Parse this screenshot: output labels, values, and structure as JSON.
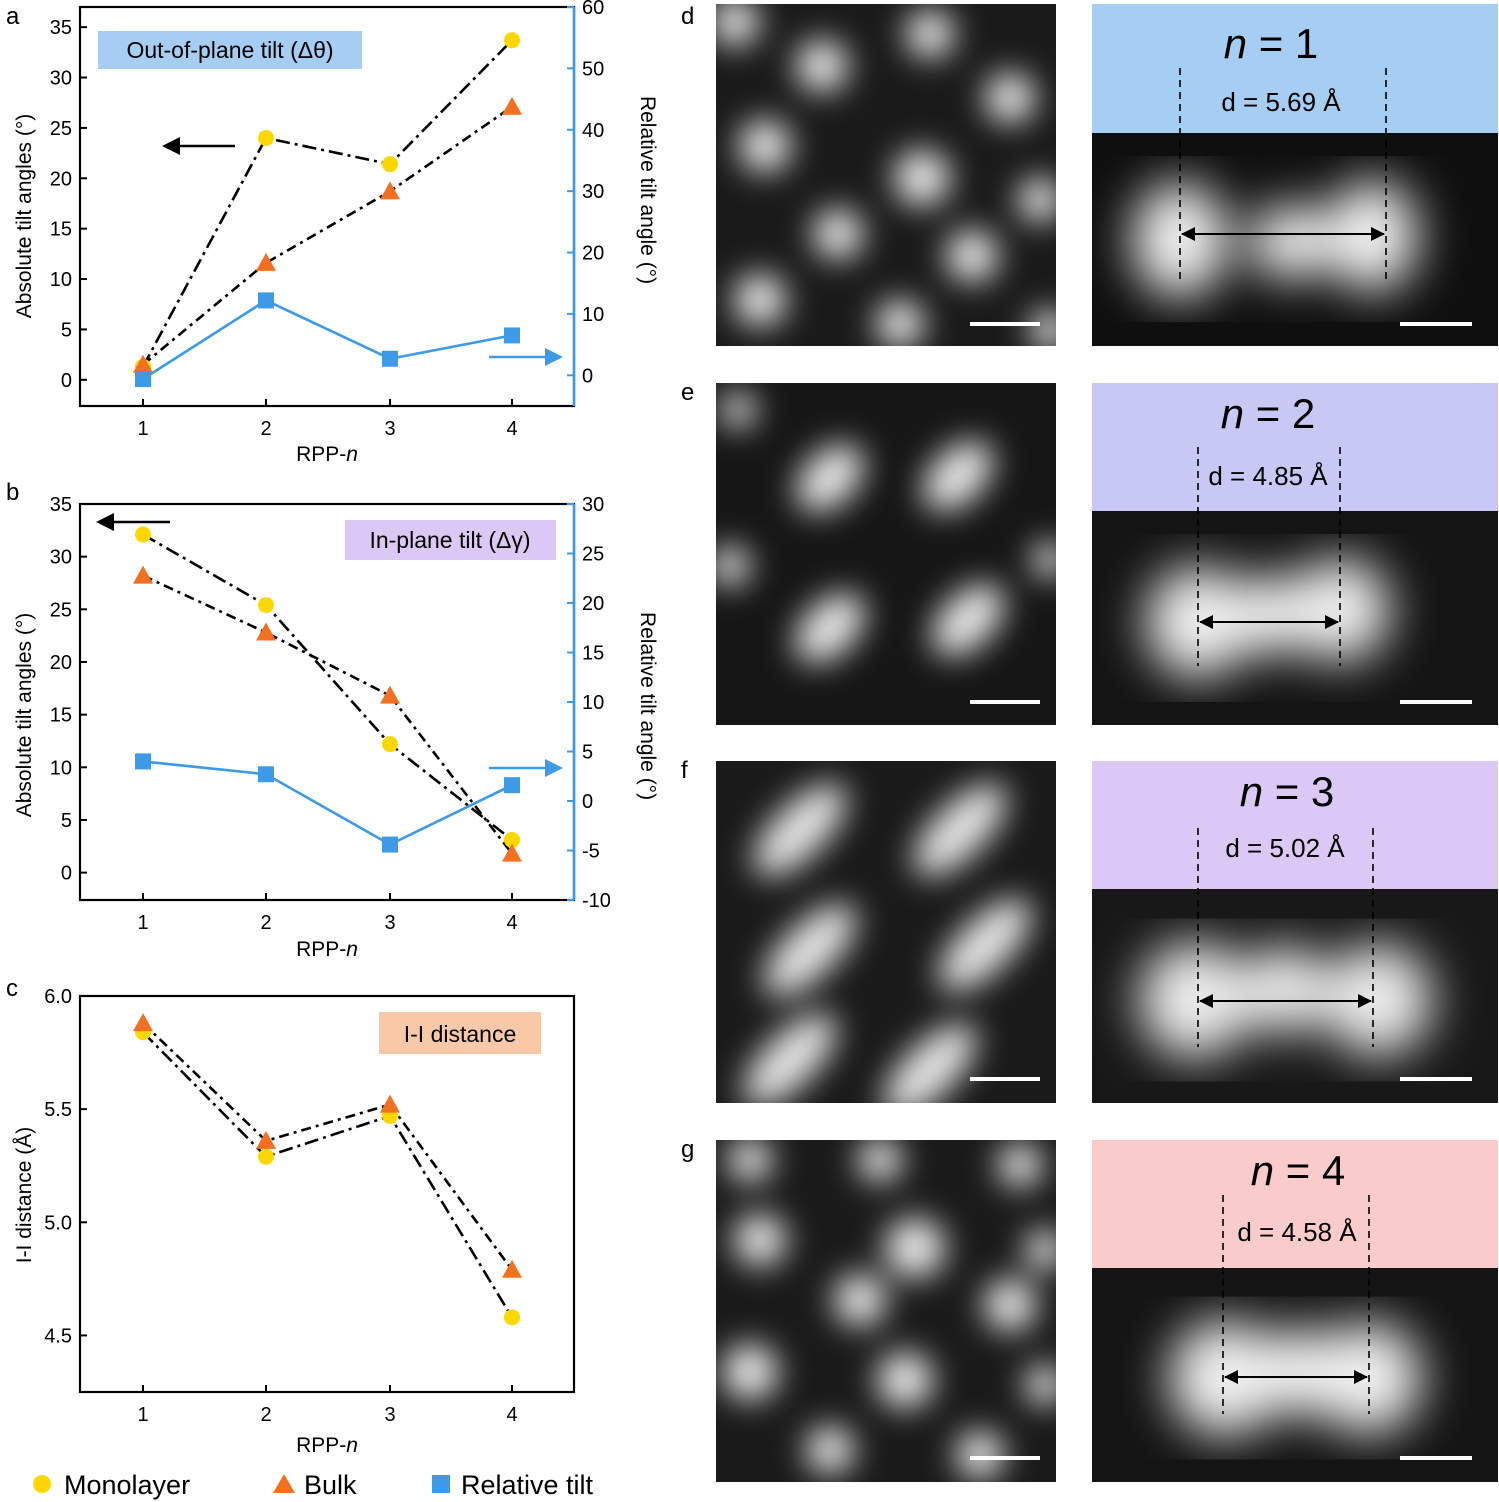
{
  "chart_data": [
    {
      "panel": "a",
      "type": "line",
      "title": "Out-of-plane tilt (Δθ)",
      "title_color": "#a6cdf2",
      "xlabel_prefix": "RPP-",
      "xlabel_italic": "n",
      "ylabel": "Absolute tilt angles (°)",
      "ylabel_right": "Relative tilt angle (°)",
      "categories": [
        1,
        2,
        3,
        4
      ],
      "ylim": [
        -2.6,
        37.0
      ],
      "yticks": [
        0,
        5,
        10,
        15,
        20,
        25,
        30,
        35
      ],
      "ylim_right": [
        -5,
        60
      ],
      "yticks_right": [
        0,
        10,
        20,
        30,
        40,
        50,
        60
      ],
      "series": [
        {
          "name": "Monolayer",
          "axis": "left",
          "marker": "circle",
          "color": "#ffd700",
          "values": [
            1.3,
            24.0,
            21.4,
            33.7
          ]
        },
        {
          "name": "Bulk",
          "axis": "left",
          "marker": "triangle",
          "color": "#f37021",
          "values": [
            1.5,
            11.6,
            18.7,
            27.1
          ]
        },
        {
          "name": "Relative tilt",
          "axis": "right",
          "marker": "square",
          "color": "#3d9ae8",
          "values": [
            -0.6,
            12.2,
            2.7,
            6.5
          ]
        }
      ],
      "arrow_left": "points to left axis",
      "arrow_right": "points to right axis"
    },
    {
      "panel": "b",
      "type": "line",
      "title": "In-plane tilt (Δγ)",
      "title_color": "#dcc8f4",
      "xlabel_prefix": "RPP-",
      "xlabel_italic": "n",
      "ylabel": "Absolute tilt angles (°)",
      "ylabel_right": "Relative tilt angle (°)",
      "categories": [
        1,
        2,
        3,
        4
      ],
      "ylim": [
        -2.6,
        35.0
      ],
      "yticks": [
        0,
        5,
        10,
        15,
        20,
        25,
        30,
        35
      ],
      "ylim_right": [
        -10,
        30
      ],
      "yticks_right": [
        -10,
        -5,
        0,
        5,
        10,
        15,
        20,
        25,
        30
      ],
      "series": [
        {
          "name": "Monolayer",
          "axis": "left",
          "marker": "circle",
          "color": "#ffd700",
          "values": [
            32.1,
            25.4,
            12.2,
            3.1
          ]
        },
        {
          "name": "Bulk",
          "axis": "left",
          "marker": "triangle",
          "color": "#f37021",
          "values": [
            28.2,
            22.8,
            16.8,
            1.8
          ]
        },
        {
          "name": "Relative tilt",
          "axis": "right",
          "marker": "square",
          "color": "#3d9ae8",
          "values": [
            4.0,
            2.7,
            -4.4,
            1.6
          ]
        }
      ],
      "arrow_left": "points to left axis",
      "arrow_right": "points to right axis"
    },
    {
      "panel": "c",
      "type": "line",
      "title": "I-I distance",
      "title_color": "#f9c8a6",
      "xlabel_prefix": "RPP-",
      "xlabel_italic": "n",
      "ylabel": "I-I distance (Å)",
      "categories": [
        1,
        2,
        3,
        4
      ],
      "ylim": [
        4.25,
        6.0
      ],
      "yticks": [
        "4.5",
        "5.0",
        "5.5",
        "6.0"
      ],
      "series": [
        {
          "name": "Monolayer",
          "marker": "circle",
          "color": "#ffd700",
          "values": [
            5.84,
            5.29,
            5.47,
            4.58
          ]
        },
        {
          "name": "Bulk",
          "marker": "triangle",
          "color": "#f37021",
          "values": [
            5.88,
            5.36,
            5.52,
            4.79
          ]
        }
      ]
    }
  ],
  "legend": [
    {
      "label": "Monolayer",
      "marker": "circle",
      "color": "#ffd700"
    },
    {
      "label": "Bulk",
      "marker": "triangle",
      "color": "#f37021"
    },
    {
      "label": "Relative tilt",
      "marker": "square",
      "color": "#3d9ae8"
    }
  ],
  "images": [
    {
      "panel": "d",
      "n_text": "n",
      "n_value": "= 1",
      "distance": "d = 5.69 Å",
      "color": "#a6cdf2"
    },
    {
      "panel": "e",
      "n_text": "n",
      "n_value": "= 2",
      "distance": "d = 4.85 Å",
      "color": "#c8c8f4"
    },
    {
      "panel": "f",
      "n_text": "n",
      "n_value": "= 3",
      "distance": "d = 5.02 Å",
      "color": "#dcc8f4"
    },
    {
      "panel": "g",
      "n_text": "n",
      "n_value": "= 4",
      "distance": "d = 4.58 Å",
      "color": "#f9cccb"
    }
  ]
}
